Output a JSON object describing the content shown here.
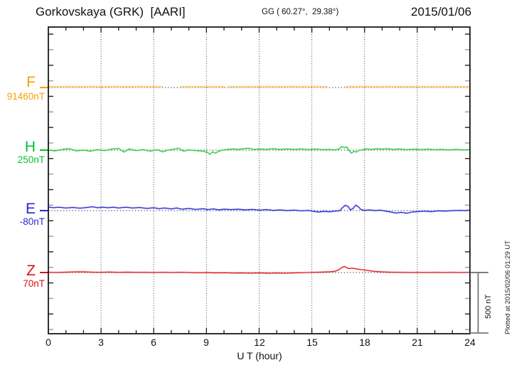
{
  "header": {
    "title": "Gorkovskaya (GRK)  [AARI]",
    "coords": "GG ( 60.27°,  29.38°)",
    "date": "2015/01/06"
  },
  "footer_note": "Plotted at 2015/02/06 01:29 UT",
  "chart_data": {
    "type": "line",
    "title": "Gorkovskaya (GRK) [AARI] magnetogram 2015/01/06",
    "xlabel": "U T (hour)",
    "x_range": [
      0,
      24
    ],
    "x_major_ticks": [
      0,
      3,
      6,
      9,
      12,
      15,
      18,
      21,
      24
    ],
    "x_minor_tick_step_hours": 1,
    "grid": "vertical dotted lines every 3 hours",
    "scale_bar": {
      "label": "500 nT",
      "nT": 500
    },
    "axis_color": "#1a1a1a",
    "series": [
      {
        "name": "F",
        "label": "F",
        "baseline_label": "91460nT",
        "baseline_nT": 91460,
        "label_color": "#F5A300",
        "line_color": "#FFD080",
        "units": "nT",
        "values_are": "deviation from baseline in nT",
        "segments": [
          [
            [
              0,
              0
            ],
            [
              6.5,
              0
            ]
          ],
          [
            [
              7.5,
              0
            ],
            [
              10.05,
              0
            ]
          ],
          [
            [
              10.2,
              0
            ],
            [
              15.9,
              0
            ]
          ],
          [
            [
              16.9,
              0
            ],
            [
              24,
              0
            ]
          ]
        ]
      },
      {
        "name": "H",
        "label": "H",
        "baseline_label": "250nT",
        "baseline_nT": 250,
        "label_color": "#00C032",
        "line_color": "#2ECC40",
        "units": "nT",
        "values_are": "deviation from baseline in nT",
        "segments": [
          [
            [
              0,
              0
            ],
            [
              0.4,
              -6
            ],
            [
              0.8,
              6
            ],
            [
              1.2,
              12
            ],
            [
              1.6,
              -6
            ],
            [
              2,
              0
            ],
            [
              2.4,
              -8
            ],
            [
              2.8,
              4
            ],
            [
              3.2,
              -4
            ],
            [
              3.6,
              8
            ],
            [
              4,
              14
            ],
            [
              4.3,
              -16
            ],
            [
              4.6,
              10
            ],
            [
              5,
              -4
            ],
            [
              5.4,
              4
            ],
            [
              5.8,
              -8
            ],
            [
              6.2,
              4
            ],
            [
              6.5,
              -14
            ],
            [
              6.8,
              0
            ],
            [
              7.1,
              6
            ],
            [
              7.4,
              16
            ],
            [
              7.7,
              -8
            ],
            [
              8,
              2
            ],
            [
              8.4,
              -4
            ],
            [
              8.8,
              -8
            ],
            [
              9.05,
              -18
            ],
            [
              9.2,
              -34
            ],
            [
              9.35,
              -14
            ],
            [
              9.5,
              -24
            ],
            [
              9.7,
              -10
            ],
            [
              9.9,
              0
            ],
            [
              10.2,
              6
            ],
            [
              10.5,
              10
            ],
            [
              10.8,
              6
            ],
            [
              11.1,
              12
            ],
            [
              11.4,
              16
            ],
            [
              11.7,
              6
            ],
            [
              12,
              10
            ],
            [
              12.4,
              6
            ],
            [
              12.8,
              12
            ],
            [
              13.2,
              6
            ],
            [
              13.6,
              10
            ],
            [
              14,
              6
            ],
            [
              14.4,
              10
            ],
            [
              14.8,
              4
            ],
            [
              15.2,
              8
            ],
            [
              15.6,
              4
            ],
            [
              16,
              6
            ],
            [
              16.3,
              2
            ],
            [
              16.55,
              8
            ],
            [
              16.7,
              30
            ],
            [
              16.85,
              20
            ],
            [
              17,
              26
            ],
            [
              17.1,
              0
            ],
            [
              17.25,
              -24
            ],
            [
              17.4,
              -10
            ],
            [
              17.55,
              -16
            ],
            [
              17.7,
              -2
            ],
            [
              17.9,
              4
            ],
            [
              18.1,
              10
            ],
            [
              18.4,
              6
            ],
            [
              18.7,
              12
            ],
            [
              19,
              8
            ],
            [
              19.3,
              12
            ],
            [
              19.6,
              6
            ],
            [
              20,
              10
            ],
            [
              20.4,
              4
            ],
            [
              20.8,
              8
            ],
            [
              21.2,
              4
            ],
            [
              21.6,
              8
            ],
            [
              22,
              4
            ],
            [
              22.4,
              6
            ],
            [
              22.8,
              2
            ],
            [
              23.2,
              6
            ],
            [
              23.6,
              2
            ],
            [
              24,
              4
            ]
          ]
        ]
      },
      {
        "name": "E",
        "label": "E",
        "baseline_label": "-80nT",
        "baseline_nT": -80,
        "label_color": "#2929CC",
        "line_color": "#2A2AD6",
        "units": "nT",
        "values_are": "deviation from baseline in nT",
        "segments": [
          [
            [
              0,
              30
            ],
            [
              0.3,
              24
            ],
            [
              0.6,
              28
            ],
            [
              1,
              22
            ],
            [
              1.4,
              26
            ],
            [
              1.8,
              20
            ],
            [
              2.2,
              26
            ],
            [
              2.5,
              32
            ],
            [
              2.8,
              24
            ],
            [
              3.1,
              28
            ],
            [
              3.4,
              24
            ],
            [
              3.7,
              28
            ],
            [
              4,
              22
            ],
            [
              4.4,
              28
            ],
            [
              4.8,
              22
            ],
            [
              5.2,
              26
            ],
            [
              5.6,
              18
            ],
            [
              6,
              24
            ],
            [
              6.3,
              16
            ],
            [
              6.6,
              22
            ],
            [
              7,
              14
            ],
            [
              7.3,
              22
            ],
            [
              7.6,
              12
            ],
            [
              8,
              18
            ],
            [
              8.4,
              10
            ],
            [
              8.8,
              16
            ],
            [
              9.1,
              8
            ],
            [
              9.4,
              14
            ],
            [
              9.7,
              6
            ],
            [
              10,
              12
            ],
            [
              10.4,
              8
            ],
            [
              10.8,
              12
            ],
            [
              11.2,
              6
            ],
            [
              11.6,
              10
            ],
            [
              12,
              4
            ],
            [
              12.4,
              8
            ],
            [
              12.8,
              2
            ],
            [
              13.2,
              6
            ],
            [
              13.6,
              0
            ],
            [
              14,
              4
            ],
            [
              14.4,
              -2
            ],
            [
              14.8,
              2
            ],
            [
              15.1,
              -6
            ],
            [
              15.4,
              -12
            ],
            [
              15.7,
              -6
            ],
            [
              16,
              -10
            ],
            [
              16.3,
              -4
            ],
            [
              16.6,
              0
            ],
            [
              16.75,
              26
            ],
            [
              16.9,
              44
            ],
            [
              17.05,
              36
            ],
            [
              17.2,
              6
            ],
            [
              17.35,
              18
            ],
            [
              17.5,
              46
            ],
            [
              17.65,
              32
            ],
            [
              17.8,
              8
            ],
            [
              18,
              2
            ],
            [
              18.3,
              6
            ],
            [
              18.6,
              0
            ],
            [
              18.9,
              4
            ],
            [
              19.2,
              -4
            ],
            [
              19.5,
              -12
            ],
            [
              19.8,
              -20
            ],
            [
              20.1,
              -14
            ],
            [
              20.4,
              -22
            ],
            [
              20.7,
              -12
            ],
            [
              21,
              -8
            ],
            [
              21.4,
              -4
            ],
            [
              21.8,
              -8
            ],
            [
              22.2,
              -2
            ],
            [
              22.6,
              -4
            ],
            [
              23,
              0
            ],
            [
              23.4,
              2
            ],
            [
              23.7,
              0
            ],
            [
              24,
              4
            ]
          ]
        ]
      },
      {
        "name": "Z",
        "label": "Z",
        "baseline_label": "70nT",
        "baseline_nT": 70,
        "label_color": "#DD1111",
        "line_color": "#E32222",
        "units": "nT",
        "values_are": "deviation from baseline in nT",
        "segments": [
          [
            [
              0,
              2
            ],
            [
              0.5,
              0
            ],
            [
              1,
              3
            ],
            [
              1.5,
              5
            ],
            [
              2,
              6
            ],
            [
              2.5,
              3
            ],
            [
              3,
              2
            ],
            [
              3.5,
              4
            ],
            [
              4,
              1
            ],
            [
              4.5,
              3
            ],
            [
              5,
              1
            ],
            [
              5.5,
              2
            ],
            [
              6,
              0
            ],
            [
              6.5,
              2
            ],
            [
              7,
              0
            ],
            [
              7.5,
              2
            ],
            [
              8,
              0
            ],
            [
              8.5,
              -2
            ],
            [
              9,
              0
            ],
            [
              9.5,
              -3
            ],
            [
              10,
              -2
            ],
            [
              10.5,
              -4
            ],
            [
              11,
              -3
            ],
            [
              11.5,
              -5
            ],
            [
              12,
              -3
            ],
            [
              12.5,
              -6
            ],
            [
              13,
              -4
            ],
            [
              13.5,
              -5
            ],
            [
              14,
              -3
            ],
            [
              14.5,
              -1
            ],
            [
              15,
              1
            ],
            [
              15.5,
              3
            ],
            [
              16,
              6
            ],
            [
              16.3,
              10
            ],
            [
              16.5,
              20
            ],
            [
              16.7,
              40
            ],
            [
              16.85,
              50
            ],
            [
              17,
              40
            ],
            [
              17.1,
              32
            ],
            [
              17.25,
              36
            ],
            [
              17.4,
              34
            ],
            [
              17.6,
              28
            ],
            [
              17.8,
              24
            ],
            [
              18,
              21
            ],
            [
              18.3,
              14
            ],
            [
              18.6,
              9
            ],
            [
              19,
              5
            ],
            [
              19.4,
              3
            ],
            [
              19.8,
              2
            ],
            [
              20.2,
              1
            ],
            [
              20.6,
              0
            ],
            [
              21,
              1
            ],
            [
              21.5,
              0
            ],
            [
              22,
              1
            ],
            [
              22.5,
              0
            ],
            [
              23,
              1
            ],
            [
              23.5,
              0
            ],
            [
              24,
              1
            ]
          ]
        ]
      }
    ]
  }
}
